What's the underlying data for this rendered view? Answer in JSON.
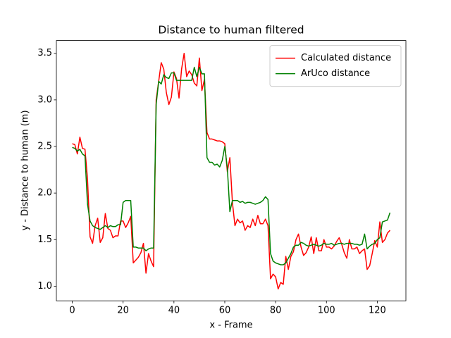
{
  "chart_data": {
    "type": "line",
    "title": "Distance to human filtered",
    "x_label": "x - Frame",
    "y_label": "y - Distance to human (m)",
    "x": [
      0,
      1,
      2,
      3,
      4,
      5,
      6,
      7,
      8,
      9,
      10,
      11,
      12,
      13,
      14,
      15,
      16,
      17,
      18,
      19,
      20,
      21,
      22,
      23,
      24,
      25,
      26,
      27,
      28,
      29,
      30,
      31,
      32,
      33,
      34,
      35,
      36,
      37,
      38,
      39,
      40,
      41,
      42,
      43,
      44,
      45,
      46,
      47,
      48,
      49,
      50,
      51,
      52,
      53,
      54,
      55,
      56,
      57,
      58,
      59,
      60,
      61,
      62,
      63,
      64,
      65,
      66,
      67,
      68,
      69,
      70,
      71,
      72,
      73,
      74,
      75,
      76,
      77,
      78,
      79,
      80,
      81,
      82,
      83,
      84,
      85,
      86,
      87,
      88,
      89,
      90,
      91,
      92,
      93,
      94,
      95,
      96,
      97,
      98,
      99,
      100,
      101,
      102,
      103,
      104,
      105,
      106,
      107,
      108,
      109,
      110,
      111,
      112,
      113,
      114,
      115,
      116,
      117,
      118,
      119,
      120,
      121,
      122,
      123,
      124,
      125
    ],
    "series": [
      {
        "name": "Calculated distance",
        "color": "#ff0000",
        "values": [
          2.53,
          2.52,
          2.42,
          2.6,
          2.48,
          2.47,
          2.15,
          1.53,
          1.46,
          1.65,
          1.73,
          1.47,
          1.52,
          1.78,
          1.62,
          1.6,
          1.52,
          1.54,
          1.54,
          1.7,
          1.7,
          1.63,
          1.68,
          1.75,
          1.25,
          1.28,
          1.31,
          1.36,
          1.46,
          1.14,
          1.35,
          1.27,
          1.21,
          3.0,
          3.2,
          3.4,
          3.33,
          3.08,
          2.95,
          3.03,
          3.3,
          3.23,
          3.02,
          3.33,
          3.5,
          3.25,
          3.31,
          3.27,
          3.18,
          3.15,
          3.45,
          3.1,
          3.22,
          2.65,
          2.58,
          2.58,
          2.57,
          2.56,
          2.56,
          2.55,
          2.53,
          2.23,
          2.38,
          1.9,
          1.65,
          1.72,
          1.68,
          1.7,
          1.6,
          1.65,
          1.63,
          1.72,
          1.65,
          1.76,
          1.67,
          1.67,
          1.72,
          1.65,
          1.08,
          1.13,
          1.1,
          0.97,
          1.04,
          1.02,
          1.32,
          1.18,
          1.32,
          1.37,
          1.5,
          1.56,
          1.42,
          1.33,
          1.36,
          1.42,
          1.53,
          1.35,
          1.52,
          1.38,
          1.38,
          1.5,
          1.42,
          1.42,
          1.4,
          1.43,
          1.48,
          1.52,
          1.45,
          1.36,
          1.3,
          1.5,
          1.4,
          1.4,
          1.42,
          1.35,
          1.38,
          1.4,
          1.18,
          1.22,
          1.35,
          1.49,
          1.42,
          1.69,
          1.47,
          1.5,
          1.57,
          1.6
        ]
      },
      {
        "name": "ArUco distance",
        "color": "#008000",
        "values": [
          2.49,
          2.48,
          2.45,
          2.47,
          2.42,
          2.4,
          1.88,
          1.7,
          1.65,
          1.63,
          1.62,
          1.61,
          1.63,
          1.65,
          1.63,
          1.65,
          1.64,
          1.64,
          1.66,
          1.66,
          1.9,
          1.92,
          1.92,
          1.92,
          1.42,
          1.42,
          1.41,
          1.41,
          1.41,
          1.38,
          1.4,
          1.41,
          1.41,
          2.95,
          3.2,
          3.17,
          3.27,
          3.24,
          3.23,
          3.29,
          3.29,
          3.21,
          3.21,
          3.21,
          3.21,
          3.21,
          3.21,
          3.21,
          3.35,
          3.25,
          3.35,
          3.28,
          3.28,
          2.38,
          2.33,
          2.33,
          2.3,
          2.31,
          2.28,
          2.35,
          2.5,
          2.27,
          1.8,
          1.92,
          1.92,
          1.92,
          1.9,
          1.91,
          1.89,
          1.9,
          1.9,
          1.89,
          1.88,
          1.89,
          1.9,
          1.92,
          1.96,
          1.93,
          1.35,
          1.27,
          1.25,
          1.24,
          1.23,
          1.23,
          1.25,
          1.3,
          1.35,
          1.42,
          1.44,
          1.44,
          1.47,
          1.46,
          1.44,
          1.43,
          1.44,
          1.45,
          1.44,
          1.43,
          1.44,
          1.46,
          1.45,
          1.45,
          1.46,
          1.44,
          1.45,
          1.46,
          1.46,
          1.45,
          1.46,
          1.46,
          1.46,
          1.45,
          1.45,
          1.44,
          1.45,
          1.56,
          1.4,
          1.43,
          1.45,
          1.46,
          1.5,
          1.52,
          1.69,
          1.7,
          1.71,
          1.79
        ]
      }
    ],
    "xlim": [
      -6.25,
      131.25
    ],
    "xticks": [
      0,
      20,
      40,
      60,
      80,
      100,
      120
    ],
    "ylim": [
      0.843,
      3.637
    ],
    "yticks": [
      {
        "value": 1.0,
        "label": "1.0"
      },
      1.5,
      {
        "value": 2.0,
        "label": "2.0"
      },
      2.5,
      {
        "value": 3.0,
        "label": "3.0"
      },
      3.5
    ],
    "legend": "upper right",
    "grid": false
  }
}
